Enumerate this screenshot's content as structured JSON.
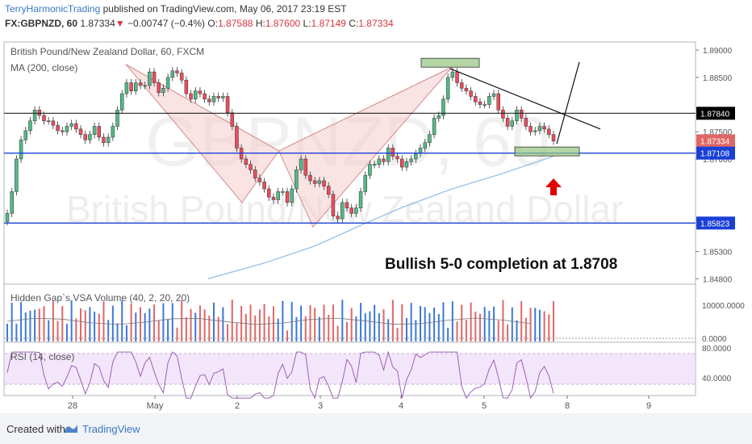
{
  "header": {
    "author": "TerryHarmonicTrading",
    "published": " published on TradingView.com, May 06, 2017 23:19 EST",
    "symbol": "FX:GBPNZD, 60",
    "price": "1.87334",
    "down_arrow": "▼",
    "change": "−0.00747 (−0.4%)",
    "o_label": "O:",
    "o": "1.87588",
    "h_label": "H:",
    "h": "1.87600",
    "l_label": "L:",
    "l": "1.87149",
    "c_label": "C:",
    "c": "1.87334"
  },
  "legend": {
    "title": "British Pound/New Zealand Dollar, 60, FXCM",
    "ma": "MA (200, close)",
    "volume": "Hidden Gap`s VSA Volume (40, 2, 20, 20)",
    "rsi": "RSI (14, close)"
  },
  "watermark": {
    "symbol": "GBPNZD, 60",
    "name": "British Pound/New Zealand Dollar"
  },
  "annotation": "Bullish 5-0 completion at 1.8708",
  "footer": {
    "created_with": "Created with",
    "brand": "TradingView"
  },
  "colors": {
    "up": "#3c78d8",
    "down": "#e06666",
    "candle_up": "#53b987",
    "candle_down": "#eb4d5c",
    "pattern_fill": "#f4cccc",
    "pattern_line": "#d48e8e",
    "ma": "#8fbbe5",
    "h_line_blue": "#1a3fd6",
    "h_line_black": "#222222",
    "zone": "#93c47d",
    "arrow": "#e00000",
    "rsi_band": "#f3e6fa",
    "rsi_line": "#9c5fb5",
    "accent": "#3a78c3"
  },
  "chart_data": {
    "type": "candlestick",
    "instrument": "British Pound/New Zealand Dollar",
    "timeframe": "60",
    "price_axis": {
      "ticks": [
        "1.89000",
        "1.88500",
        "1.87500",
        "1.87000",
        "1.85300",
        "1.84800"
      ],
      "ylim": [
        1.847,
        1.8915
      ]
    },
    "price_labels": [
      {
        "value": "1.87840",
        "style": "black"
      },
      {
        "value": "1.87334",
        "style": "red"
      },
      {
        "value": "1.87108",
        "style": "blue"
      },
      {
        "value": "1.85823",
        "style": "blue"
      }
    ],
    "horizontal_lines": [
      1.8784,
      1.87108,
      1.85823
    ],
    "x_ticks": [
      "28",
      "May",
      "2",
      "3",
      "4",
      "5",
      "8",
      "9"
    ],
    "volume_axis": {
      "ticks": [
        "10000.0000",
        "0.0000"
      ]
    },
    "rsi_axis": {
      "ticks": [
        "80.0000",
        "40.0000"
      ]
    },
    "closes": [
      1.86,
      1.864,
      1.87,
      1.8735,
      1.8752,
      1.877,
      1.879,
      1.878,
      1.877,
      1.877,
      1.8762,
      1.8752,
      1.875,
      1.876,
      1.8765,
      1.8755,
      1.8745,
      1.8735,
      1.8745,
      1.876,
      1.874,
      1.873,
      1.874,
      1.876,
      1.879,
      1.882,
      1.884,
      1.8825,
      1.884,
      1.8835,
      1.8835,
      1.886,
      1.884,
      1.8822,
      1.883,
      1.885,
      1.8862,
      1.8858,
      1.8845,
      1.882,
      1.881,
      1.8825,
      1.882,
      1.881,
      1.8805,
      1.8815,
      1.8812,
      1.8815,
      1.8785,
      1.876,
      1.872,
      1.87,
      1.869,
      1.868,
      1.8665,
      1.8658,
      1.8645,
      1.863,
      1.8625,
      1.864,
      1.864,
      1.862,
      1.8645,
      1.868,
      1.87,
      1.867,
      1.866,
      1.8655,
      1.866,
      1.865,
      1.8635,
      1.8595,
      1.859,
      1.862,
      1.861,
      1.86,
      1.861,
      1.864,
      1.867,
      1.869,
      1.869,
      1.87,
      1.8695,
      1.872,
      1.8705,
      1.87,
      1.8685,
      1.8695,
      1.87,
      1.871,
      1.872,
      1.873,
      1.8745,
      1.8775,
      1.878,
      1.881,
      1.885,
      1.886,
      1.884,
      1.883,
      1.8825,
      1.8815,
      1.8805,
      1.88,
      1.88,
      1.8815,
      1.882,
      1.879,
      1.8775,
      1.876,
      1.877,
      1.879,
      1.8775,
      1.876,
      1.875,
      1.8752,
      1.876,
      1.8755,
      1.8745,
      1.8733
    ],
    "annotation_level": 1.8708
  }
}
